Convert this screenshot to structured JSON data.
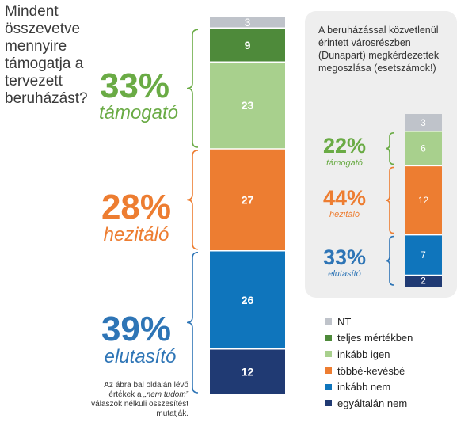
{
  "colors": {
    "nt": "#bfc3ca",
    "teljes": "#4e8a3a",
    "inkabb_igen": "#a8d08d",
    "tobbe": "#ed7d31",
    "inkabb_nem": "#0f75bc",
    "egyaltalan": "#203a73",
    "support": "#6aab45",
    "hesitant": "#ed7d31",
    "reject": "#2e75b6"
  },
  "question": "Mindent összevetve mennyire támogatja a tervezett beruházást?",
  "main_groups": {
    "support": {
      "pct": "33%",
      "label": "támogató"
    },
    "hesitant": {
      "pct": "28%",
      "label": "hezitáló"
    },
    "reject": {
      "pct": "39%",
      "label": "elutasító"
    }
  },
  "note": {
    "line1": "Az ábra bal oldalán lévő",
    "line2_pre": "értékek a ",
    "line2_em": "„nem tudom”",
    "line3": "válaszok nélküli összesítést",
    "line4": "mutatják."
  },
  "inset": {
    "title": "A beruházással közvetlenül érintett városrészben (Dunapart) megkérdezettek megoszlása (esetszámok!)",
    "groups": {
      "support": {
        "pct": "22%",
        "label": "támogató"
      },
      "hesitant": {
        "pct": "44%",
        "label": "hezitáló"
      },
      "reject": {
        "pct": "33%",
        "label": "elutasító"
      }
    }
  },
  "legend": [
    {
      "label": "NT",
      "color_key": "nt"
    },
    {
      "label": "teljes mértékben",
      "color_key": "teljes"
    },
    {
      "label": "inkább igen",
      "color_key": "inkabb_igen"
    },
    {
      "label": "többé-kevésbé",
      "color_key": "tobbe"
    },
    {
      "label": "inkább nem",
      "color_key": "inkabb_nem"
    },
    {
      "label": "egyáltalán nem",
      "color_key": "egyaltalan"
    }
  ],
  "chart_data": [
    {
      "type": "bar",
      "stacked": true,
      "categories": [
        "NT",
        "teljes mértékben",
        "inkább igen",
        "többé-kevésbé",
        "inkább nem",
        "egyáltalán nem"
      ],
      "values": [
        3,
        9,
        23,
        27,
        26,
        12
      ],
      "color_keys": [
        "nt",
        "teljes",
        "inkabb_igen",
        "tobbe",
        "inkabb_nem",
        "egyaltalan"
      ]
    },
    {
      "type": "bar",
      "stacked": true,
      "categories": [
        "NT",
        "teljes mértékben",
        "inkább igen",
        "többé-kevésbé",
        "inkább nem",
        "egyáltalán nem"
      ],
      "values": [
        3,
        0,
        6,
        12,
        7,
        2
      ],
      "color_keys": [
        "nt",
        "teljes",
        "inkabb_igen",
        "tobbe",
        "inkabb_nem",
        "egyaltalan"
      ]
    }
  ]
}
